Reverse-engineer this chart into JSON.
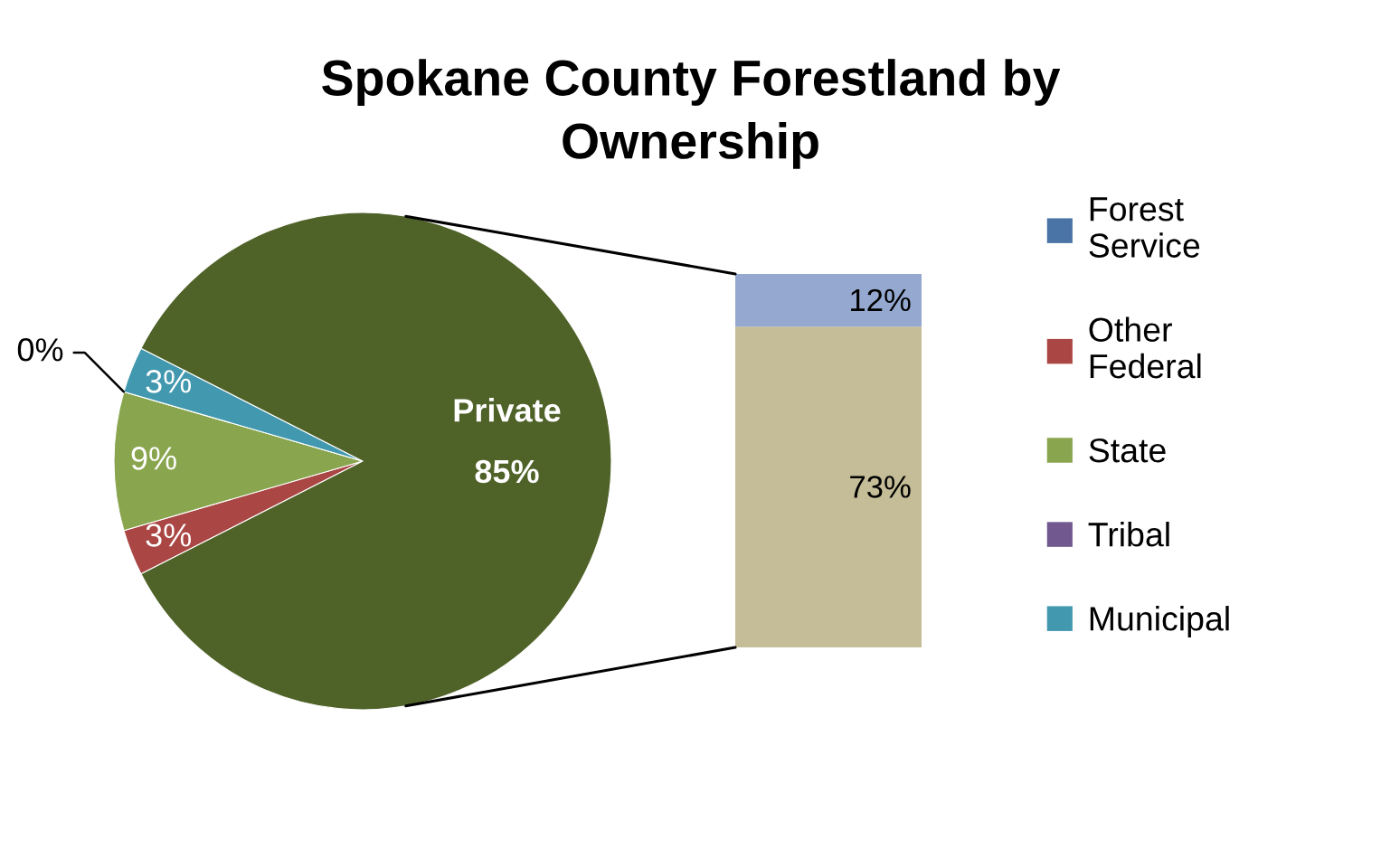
{
  "chart_data": [
    {
      "type": "pie",
      "title": "Spokane County Forestland by\nOwnership",
      "categories": [
        "Forest\nService",
        "Other\nFederal",
        "State",
        "Tribal",
        "Municipal",
        null
      ],
      "values": [
        null,
        3,
        9,
        0,
        3,
        85
      ],
      "colors": [
        "#4a74a6",
        "#aa4643",
        "#89a54e",
        "#71588f",
        "#4198af",
        "#4f6228"
      ],
      "value_labels": [
        null,
        "3%",
        "9%",
        "0%",
        "3%",
        "Private\n85%"
      ],
      "legend": "right"
    },
    {
      "type": "bar",
      "categories": [
        null
      ],
      "stacked": true,
      "tick_labels": false,
      "series": [
        {
          "color": "#c4bd97",
          "values": [
            73
          ],
          "value_labels": [
            "73%"
          ]
        },
        {
          "color": "#95a9d0",
          "values": [
            12
          ],
          "value_labels": [
            "12%"
          ]
        }
      ]
    }
  ]
}
